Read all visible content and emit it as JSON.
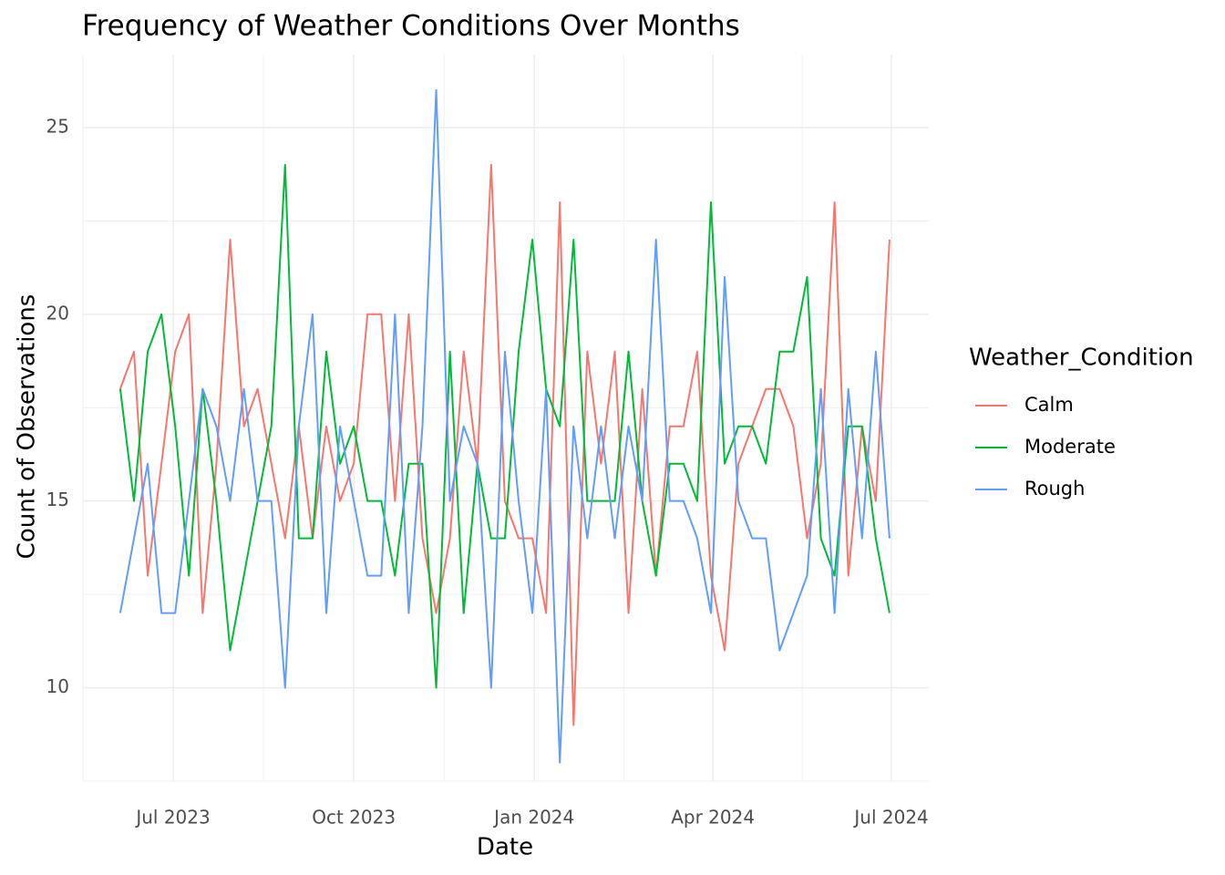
{
  "chart_data": {
    "type": "line",
    "title": "Frequency of Weather Conditions Over Months",
    "x_label": "Date",
    "y_label": "Count of Observations",
    "legend_title": "Weather_Condition",
    "legend_position": "right",
    "grid": true,
    "x": [
      "2023-06-04",
      "2023-06-11",
      "2023-06-18",
      "2023-06-25",
      "2023-07-02",
      "2023-07-09",
      "2023-07-16",
      "2023-07-23",
      "2023-07-30",
      "2023-08-06",
      "2023-08-13",
      "2023-08-20",
      "2023-08-27",
      "2023-09-03",
      "2023-09-10",
      "2023-09-17",
      "2023-09-24",
      "2023-10-01",
      "2023-10-08",
      "2023-10-15",
      "2023-10-22",
      "2023-10-29",
      "2023-11-05",
      "2023-11-12",
      "2023-11-19",
      "2023-11-26",
      "2023-12-03",
      "2023-12-10",
      "2023-12-17",
      "2023-12-24",
      "2023-12-31",
      "2024-01-07",
      "2024-01-14",
      "2024-01-21",
      "2024-01-28",
      "2024-02-04",
      "2024-02-11",
      "2024-02-18",
      "2024-02-25",
      "2024-03-03",
      "2024-03-10",
      "2024-03-17",
      "2024-03-24",
      "2024-03-31",
      "2024-04-07",
      "2024-04-14",
      "2024-04-21",
      "2024-04-28",
      "2024-05-05",
      "2024-05-12",
      "2024-05-19",
      "2024-05-26",
      "2024-06-02",
      "2024-06-09",
      "2024-06-16",
      "2024-06-23",
      "2024-06-30"
    ],
    "series": [
      {
        "name": "Calm",
        "color": "#F8766D",
        "values": [
          18,
          19,
          13,
          16,
          19,
          20,
          12,
          16,
          22,
          17,
          18,
          16,
          14,
          17,
          14,
          17,
          15,
          16,
          20,
          20,
          15,
          20,
          14,
          12,
          14,
          19,
          16,
          24,
          15,
          14,
          14,
          12,
          23,
          9,
          19,
          16,
          19,
          12,
          18,
          13,
          17,
          17,
          19,
          13,
          11,
          16,
          17,
          18,
          18,
          17,
          14,
          16,
          23,
          13,
          17,
          15,
          22
        ]
      },
      {
        "name": "Moderate",
        "color": "#00BA38",
        "values": [
          18,
          15,
          19,
          20,
          17,
          13,
          18,
          15,
          11,
          13,
          15,
          17,
          24,
          14,
          14,
          19,
          16,
          17,
          15,
          15,
          13,
          16,
          16,
          10,
          19,
          12,
          16,
          14,
          14,
          19,
          22,
          18,
          17,
          22,
          15,
          15,
          15,
          19,
          15,
          13,
          16,
          16,
          15,
          23,
          16,
          17,
          17,
          16,
          19,
          19,
          21,
          14,
          13,
          17,
          17,
          14,
          12
        ]
      },
      {
        "name": "Rough",
        "color": "#619CFF",
        "values": [
          12,
          14,
          16,
          12,
          12,
          15,
          18,
          17,
          15,
          18,
          15,
          15,
          10,
          17,
          20,
          12,
          17,
          15,
          13,
          13,
          20,
          12,
          17,
          26,
          15,
          17,
          16,
          10,
          19,
          15,
          12,
          18,
          8,
          17,
          14,
          17,
          14,
          17,
          15,
          22,
          15,
          15,
          14,
          12,
          21,
          15,
          14,
          14,
          11,
          12,
          13,
          18,
          12,
          18,
          14,
          19,
          14
        ]
      }
    ],
    "xlim": [
      "2023-05-16",
      "2024-07-20"
    ],
    "xticks": [
      {
        "value": "2023-07-01",
        "label": "Jul 2023"
      },
      {
        "value": "2023-10-01",
        "label": "Oct 2023"
      },
      {
        "value": "2024-01-01",
        "label": "Jan 2024"
      },
      {
        "value": "2024-04-01",
        "label": "Apr 2024"
      },
      {
        "value": "2024-07-01",
        "label": "Jul 2024"
      }
    ],
    "ylim": [
      7.5,
      26.95
    ],
    "yticks": [
      10,
      15,
      20,
      25
    ]
  }
}
